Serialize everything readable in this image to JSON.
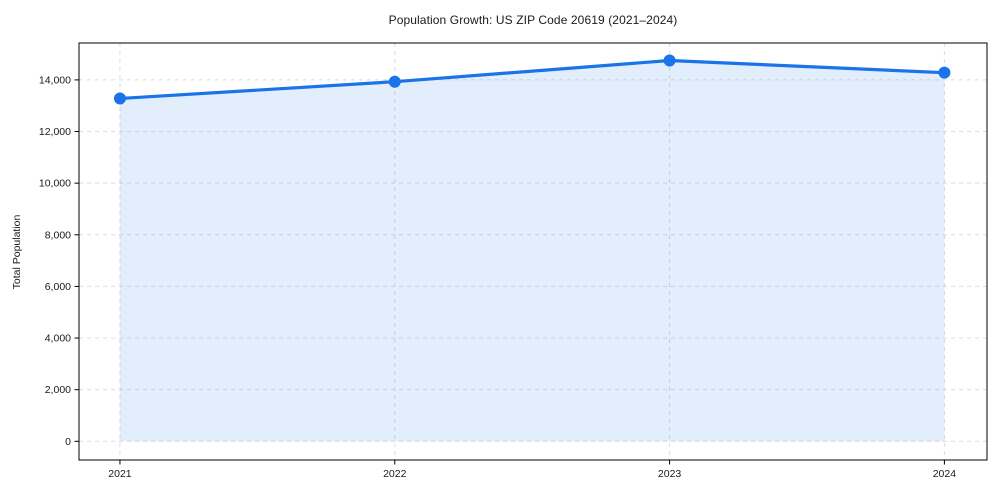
{
  "chart_data": {
    "type": "line",
    "title": "Population Growth: US ZIP Code 20619 (2021–2024)",
    "xlabel": "",
    "ylabel": "Total Population",
    "x": [
      2021,
      2022,
      2023,
      2024
    ],
    "x_tick_labels": [
      "2021",
      "2022",
      "2023",
      "2024"
    ],
    "series": [
      {
        "name": "Total Population",
        "values": [
          13280,
          13930,
          14750,
          14280
        ]
      }
    ],
    "y_ticks": [
      0,
      2000,
      4000,
      6000,
      8000,
      10000,
      12000,
      14000
    ],
    "y_tick_labels": [
      "0",
      "2,000",
      "4,000",
      "6,000",
      "8,000",
      "10,000",
      "12,000",
      "14,000"
    ],
    "xlim": [
      2020.851,
      2024.155
    ],
    "ylim": [
      -724,
      15429
    ],
    "grid": true,
    "grid_style": "dashed",
    "legend": "none",
    "area_fill_to_zero": true,
    "marker": "circle",
    "colors": {
      "line": "#1a73e8",
      "fill": "rgba(26,115,232,0.12)",
      "grid": "#dcdcdc",
      "spine": "#000000",
      "text": "#1a1a1a"
    }
  }
}
